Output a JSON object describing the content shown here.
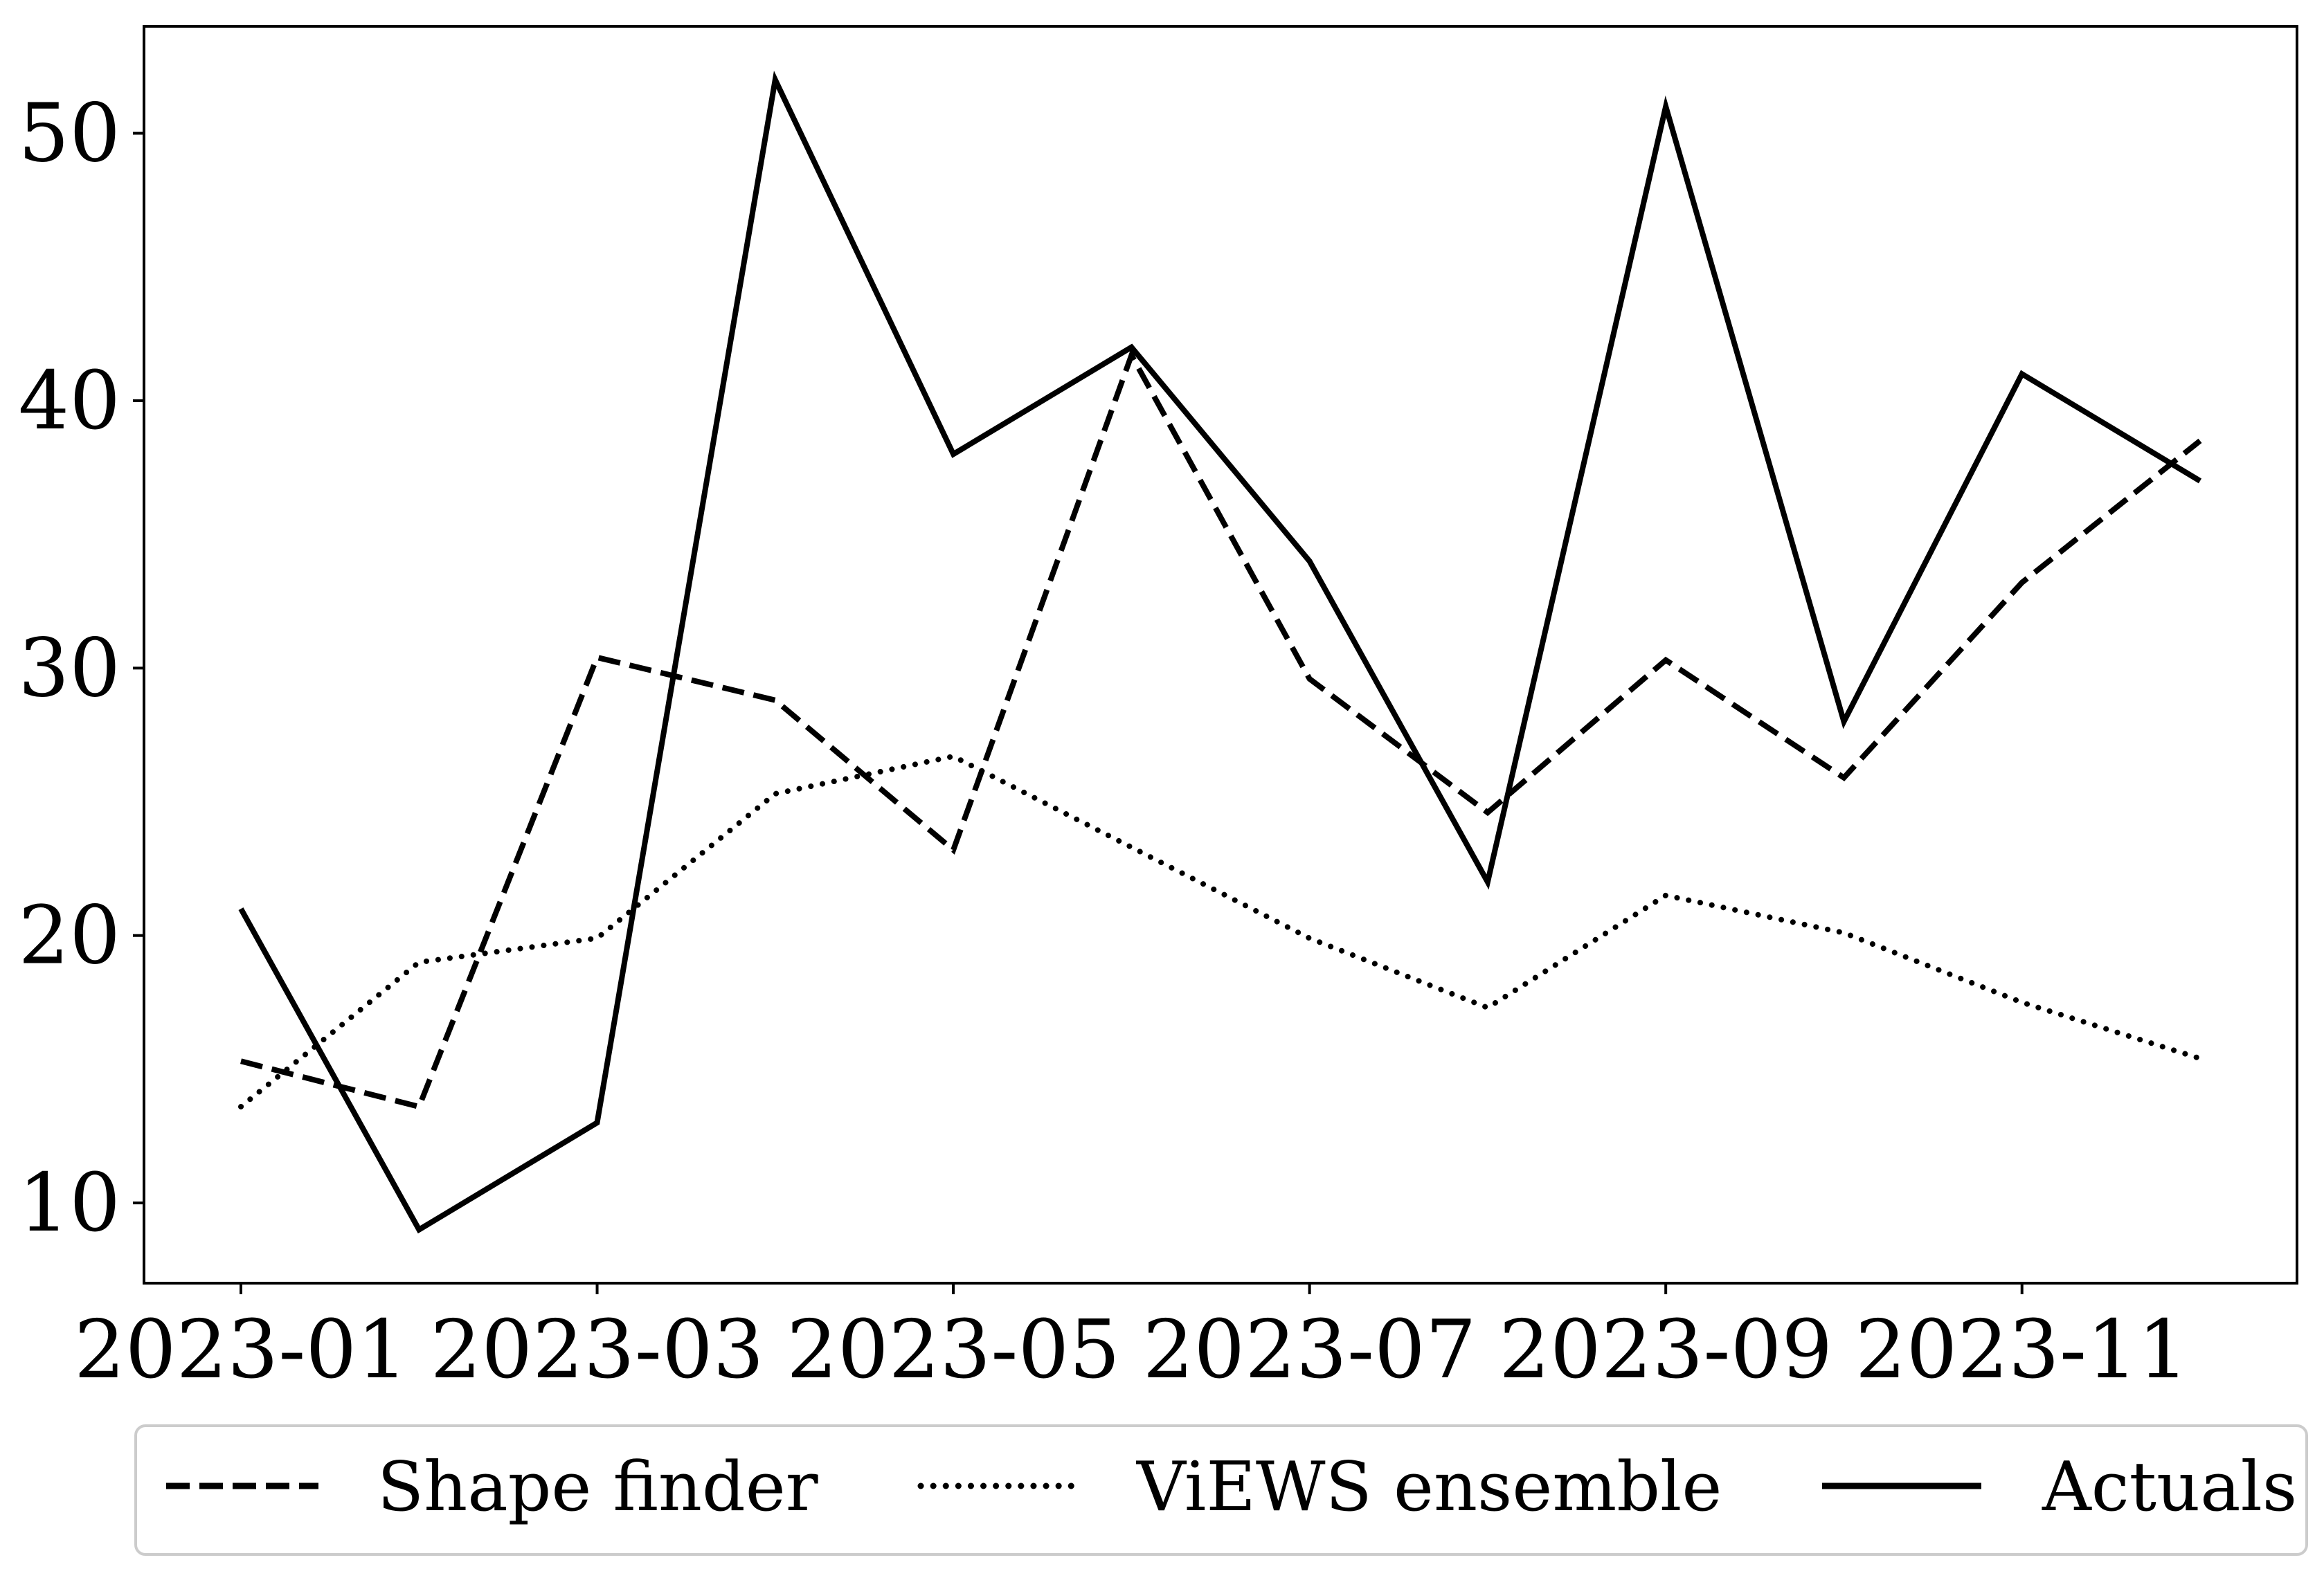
{
  "chart_data": {
    "type": "line",
    "title": "",
    "xlabel": "",
    "ylabel": "",
    "x": [
      "2023-01",
      "2023-02",
      "2023-03",
      "2023-04",
      "2023-05",
      "2023-06",
      "2023-07",
      "2023-08",
      "2023-09",
      "2023-10",
      "2023-11",
      "2023-12"
    ],
    "xticks": [
      "2023-01",
      "2023-03",
      "2023-05",
      "2023-07",
      "2023-09",
      "2023-11"
    ],
    "yticks": [
      10,
      20,
      30,
      40,
      50
    ],
    "ylim": [
      7,
      54
    ],
    "grid": false,
    "legend_position": "bottom",
    "series": [
      {
        "name": "Shape finder",
        "style": "dashed",
        "color": "#000000",
        "values": [
          15.3,
          13.6,
          30.4,
          28.8,
          23.2,
          41.7,
          29.6,
          24.6,
          30.3,
          25.9,
          33.2,
          38.5
        ]
      },
      {
        "name": "ViEWS ensemble",
        "style": "dotted",
        "color": "#000000",
        "values": [
          13.6,
          19.0,
          19.9,
          25.3,
          26.7,
          23.3,
          19.9,
          17.3,
          21.5,
          20.1,
          17.5,
          15.4
        ]
      },
      {
        "name": "Actuals",
        "style": "solid",
        "color": "#000000",
        "values": [
          21,
          9,
          13,
          52,
          38,
          42,
          34,
          22,
          51,
          28,
          41,
          37
        ]
      }
    ]
  }
}
